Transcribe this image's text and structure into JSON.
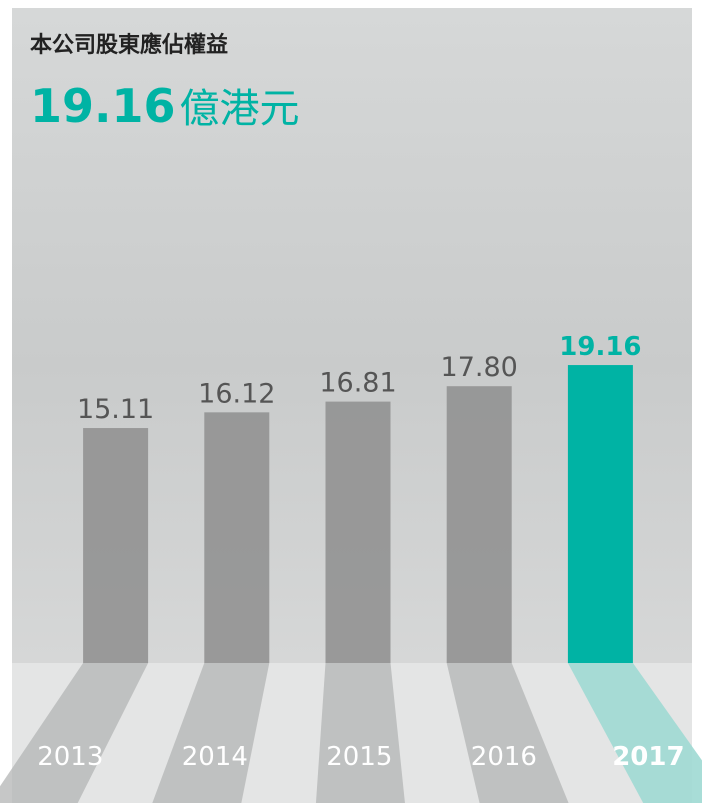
{
  "chart_data": {
    "type": "bar",
    "title": "本公司股東應佔權益",
    "unit": "億港元",
    "categories": [
      "2013",
      "2014",
      "2015",
      "2016",
      "2017"
    ],
    "values": [
      15.11,
      16.12,
      16.81,
      17.8,
      19.16
    ],
    "value_labels": [
      "15.11",
      "16.12",
      "16.81",
      "17.80",
      "19.16"
    ],
    "colors": [
      "#8e8e8e",
      "#8e8e8e",
      "#8e8e8e",
      "#8e8e8e",
      "#00b3a4"
    ],
    "highlight": 4,
    "ylim": [
      0,
      20
    ]
  }
}
